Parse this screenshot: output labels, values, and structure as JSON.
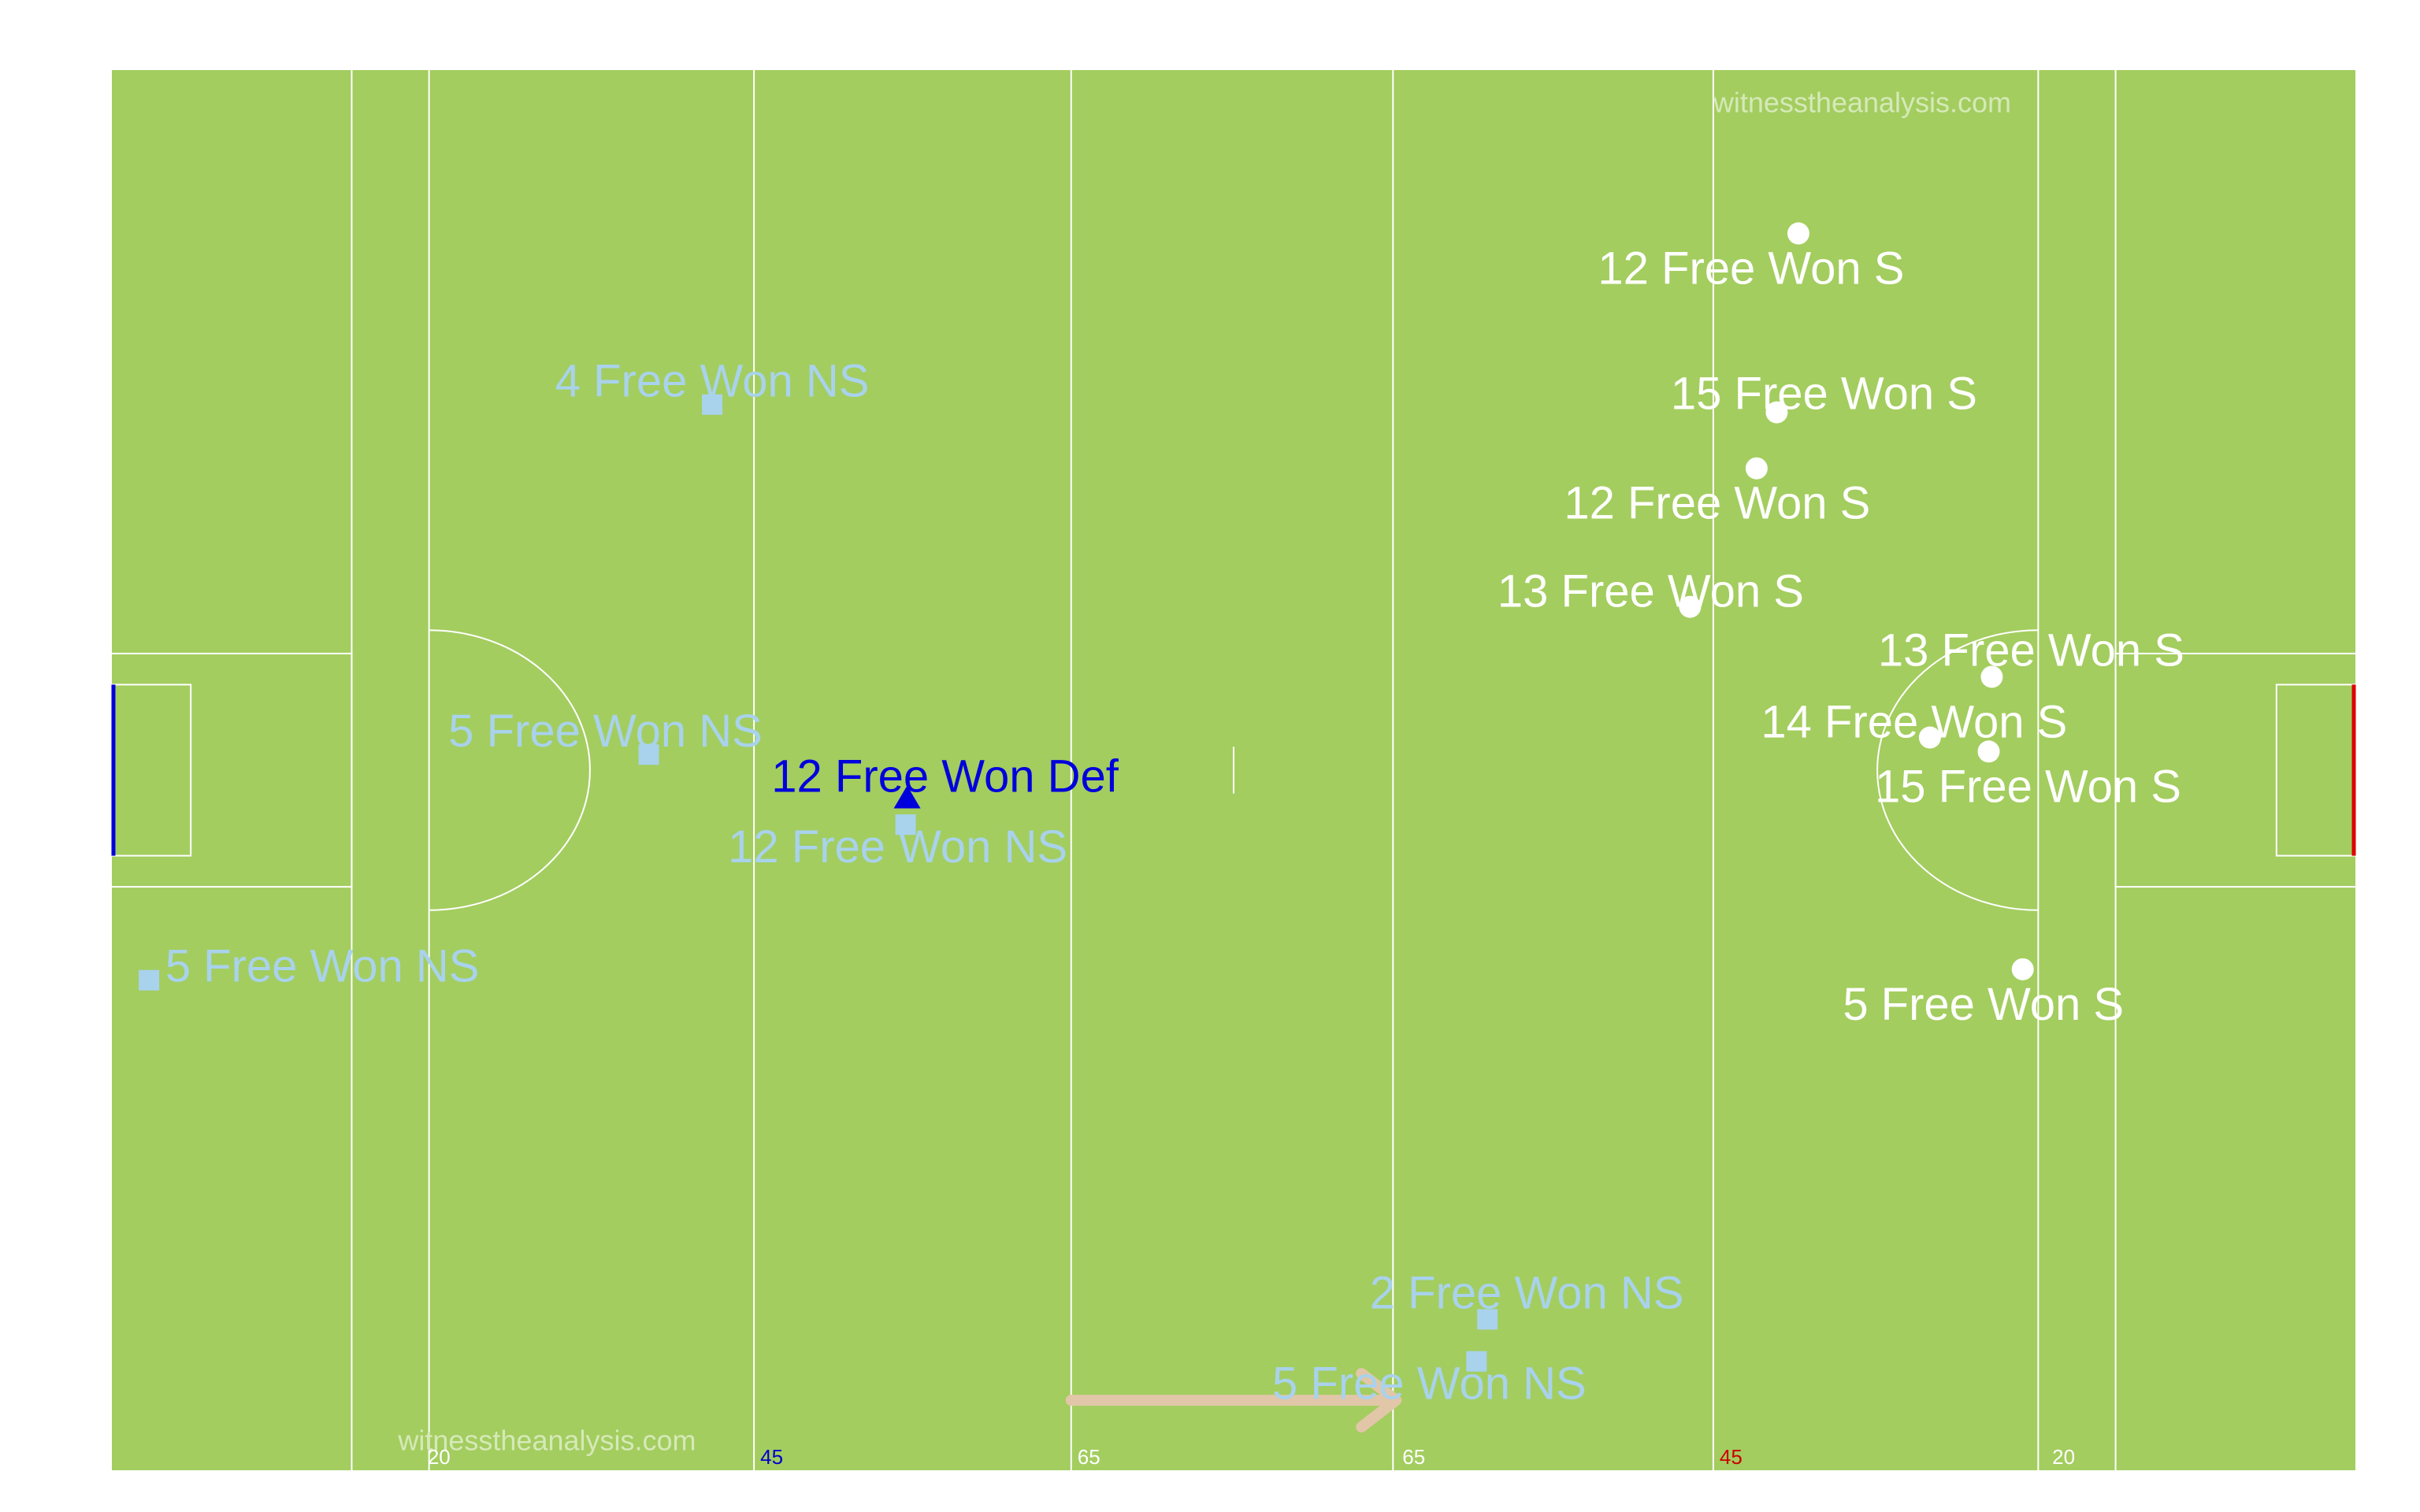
{
  "chart_data": {
    "type": "scatter",
    "title": "",
    "xlabel": "",
    "ylabel": "",
    "xlim": [
      0,
      145
    ],
    "ylim": [
      0,
      90
    ],
    "grid": false,
    "colors": {
      "pitch": "#a3cd5f",
      "lines": "#ffffff",
      "non_score": "#a9d2ec",
      "score": "#ffffff",
      "defence": "#0000dd",
      "arrow": "#e2c6a8",
      "left_goal": "#0000dd",
      "right_goal": "#dd0000",
      "watermark": "#d6e9b8"
    },
    "watermarks": [
      "witnesstheanalysis.com",
      "witnesstheanalysis.com"
    ],
    "distance_markers": [
      {
        "text": "20",
        "x": 20,
        "color": "#ffffff"
      },
      {
        "text": "45",
        "x": 41.5,
        "color": "#0000cc"
      },
      {
        "text": "65",
        "x": 62,
        "color": "#ffffff"
      },
      {
        "text": "65",
        "x": 83,
        "color": "#ffffff"
      },
      {
        "text": "45",
        "x": 103.5,
        "color": "#cc0000"
      },
      {
        "text": "20",
        "x": 125,
        "color": "#ffffff"
      }
    ],
    "legend": [],
    "series": [
      {
        "marker": "square",
        "points": [
          {
            "x": 38.8,
            "y": 68.5,
            "label": "4 Free Won NS"
          },
          {
            "x": 34.7,
            "y": 46.0,
            "label": "5 Free Won NS"
          },
          {
            "x": 51.3,
            "y": 41.5,
            "label": "12 Free Won NS"
          },
          {
            "x": 2.4,
            "y": 31.5,
            "label": "5 Free Won NS"
          },
          {
            "x": 88.9,
            "y": 9.7,
            "label": "2 Free Won NS"
          },
          {
            "x": 88.2,
            "y": 7.0,
            "label": "5 Free Won NS"
          }
        ]
      },
      {
        "marker": "circle",
        "points": [
          {
            "x": 109.0,
            "y": 79.5,
            "label": "12 Free Won S"
          },
          {
            "x": 107.6,
            "y": 68.0,
            "label": "15 Free Won S"
          },
          {
            "x": 106.3,
            "y": 64.4,
            "label": "12 Free Won S"
          },
          {
            "x": 102.0,
            "y": 55.5,
            "label": "13 Free Won S"
          },
          {
            "x": 121.5,
            "y": 51.0,
            "label": "13 Free Won S"
          },
          {
            "x": 117.5,
            "y": 47.1,
            "label": "14 Free Won S"
          },
          {
            "x": 121.3,
            "y": 46.2,
            "label": "15 Free Won S"
          },
          {
            "x": 123.5,
            "y": 32.2,
            "label": "5 Free Won S"
          }
        ]
      },
      {
        "marker": "triangle",
        "points": [
          {
            "x": 51.4,
            "y": 43.2,
            "label": "12 Free Won Def"
          }
        ]
      }
    ],
    "arrow": {
      "from": [
        62,
        4.5
      ],
      "to": [
        83,
        4.5
      ]
    }
  }
}
